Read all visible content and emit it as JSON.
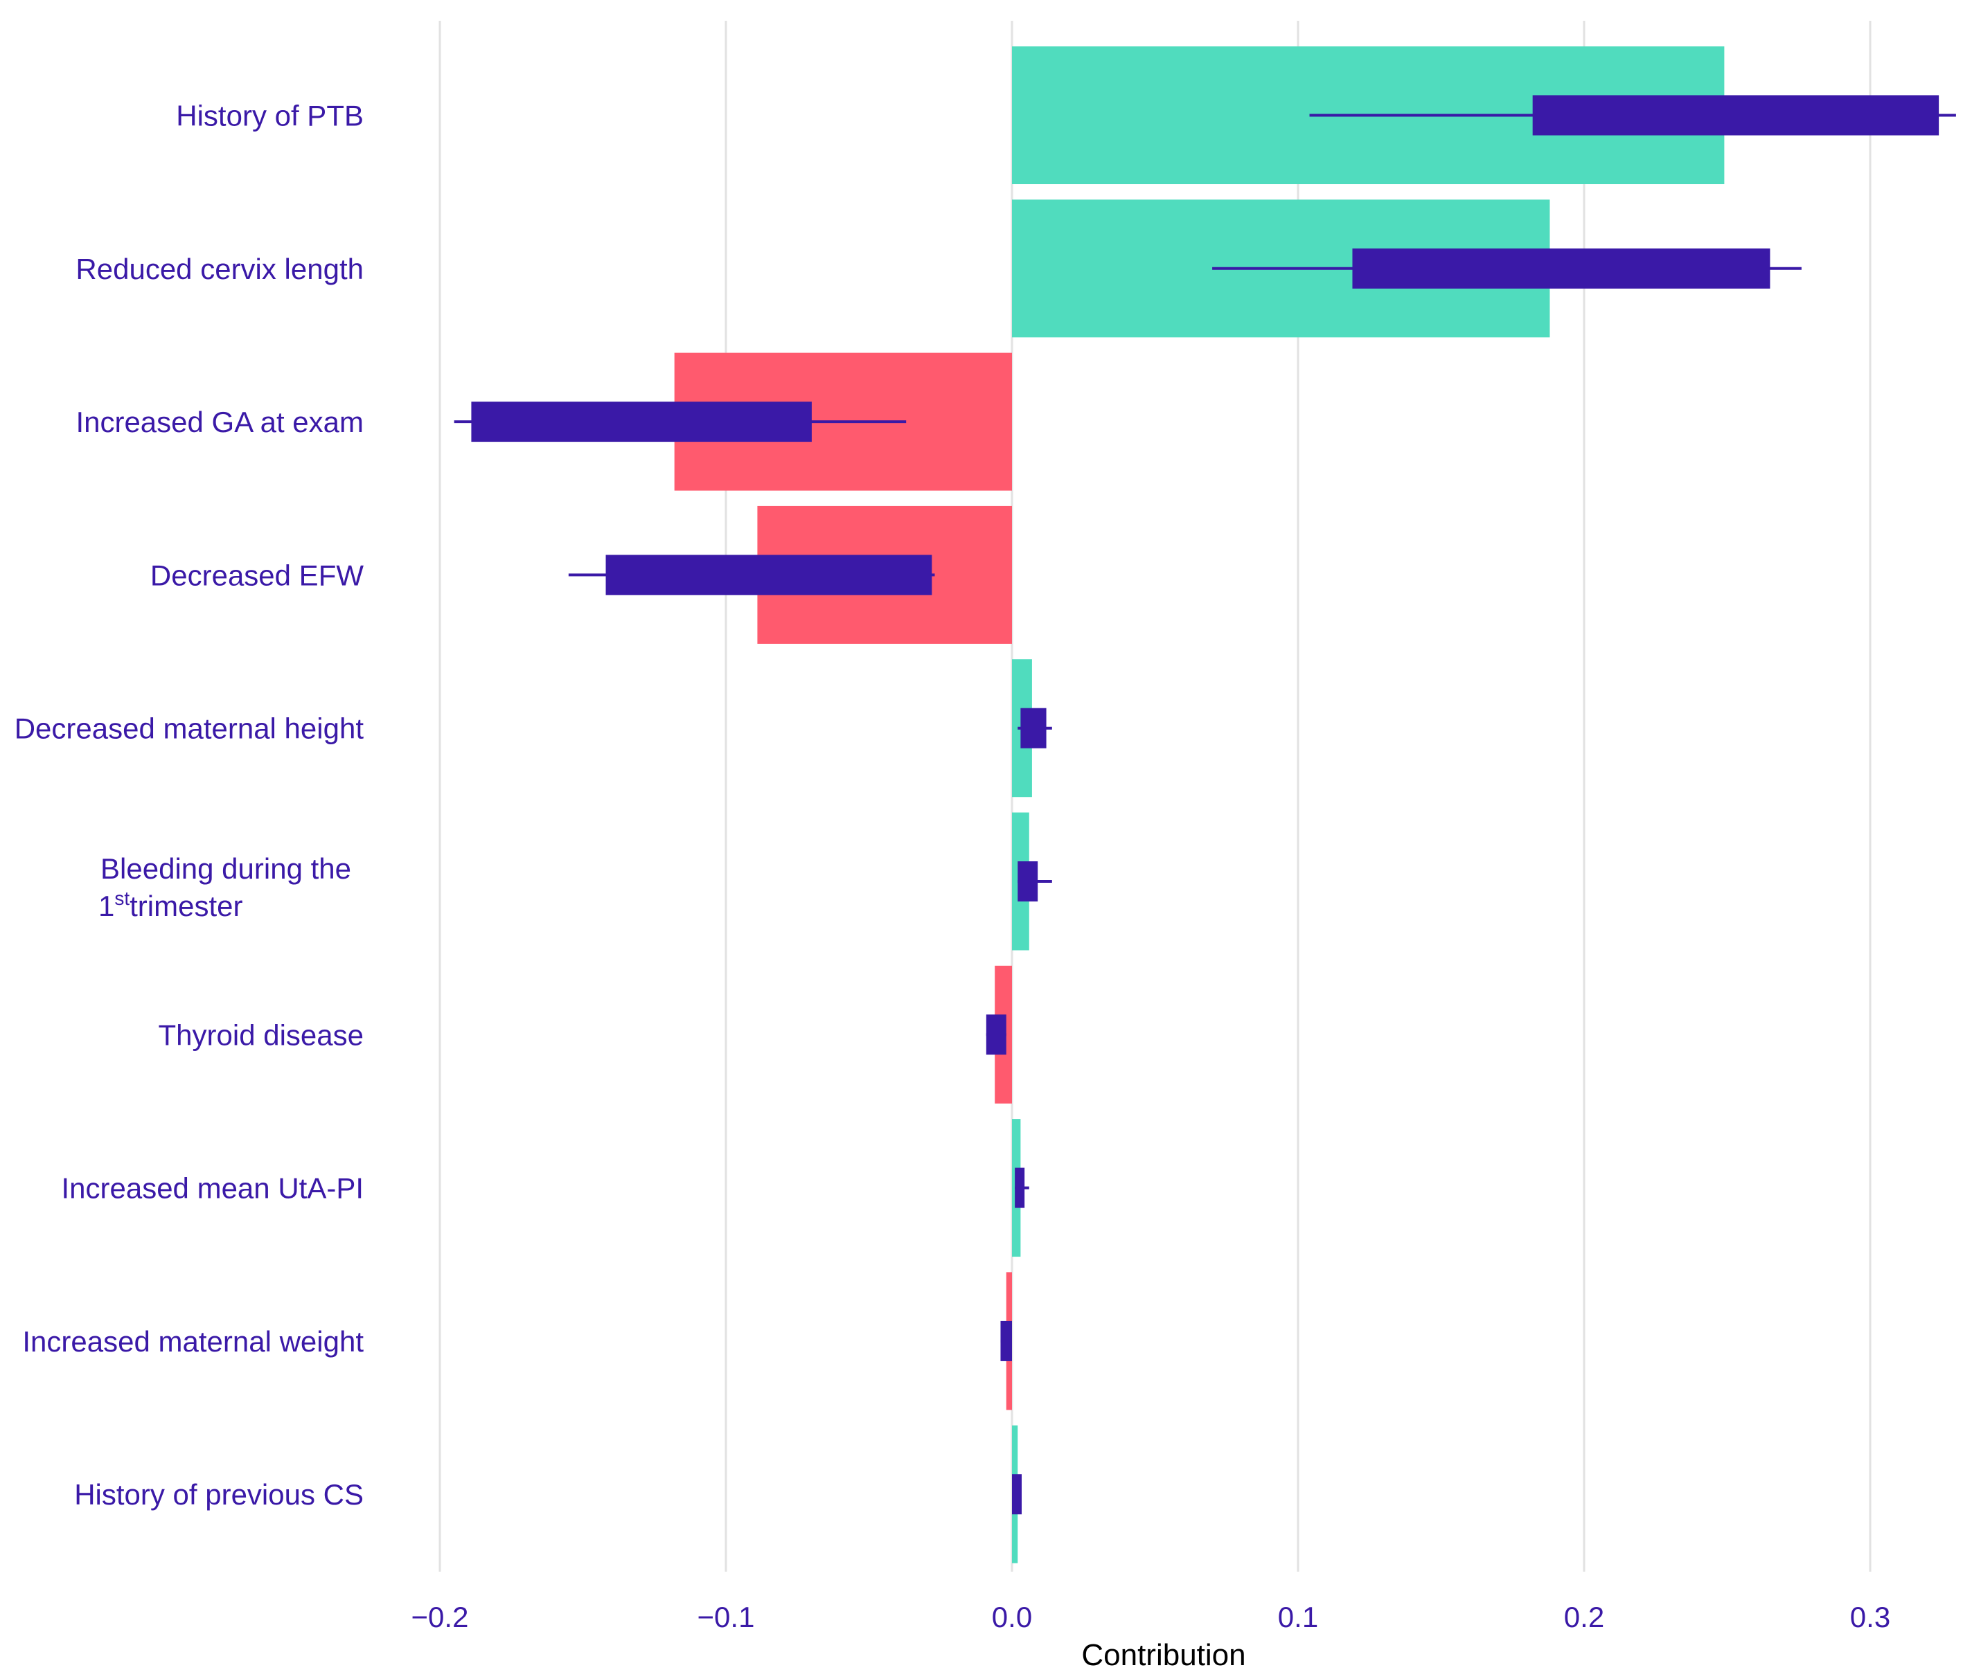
{
  "colors": {
    "positive": "#50dcbe",
    "negative": "#ff5a6e",
    "box": "#3a19a7",
    "text": "#3a19a7",
    "grid": "#e2e2e2"
  },
  "chart_data": {
    "type": "bar",
    "orientation": "horizontal",
    "title": "",
    "xlabel": "Contribution",
    "ylabel": "",
    "xlim": [
      -0.2,
      0.33
    ],
    "grid": true,
    "xticks": [
      -0.2,
      -0.1,
      0.0,
      0.1,
      0.2,
      0.3
    ],
    "xtick_labels": [
      "−0.2",
      "−0.1",
      "0.0",
      "0.1",
      "0.2",
      "0.3"
    ],
    "categories": [
      {
        "lines": [
          "History of PTB"
        ]
      },
      {
        "lines": [
          "Reduced cervix length"
        ]
      },
      {
        "lines": [
          "Increased GA at exam"
        ]
      },
      {
        "lines": [
          "Decreased EFW"
        ]
      },
      {
        "lines": [
          "Decreased maternal height"
        ]
      },
      {
        "lines": [
          "Bleeding during the",
          "1",
          "st",
          "trimester"
        ]
      },
      {
        "lines": [
          "Thyroid disease"
        ]
      },
      {
        "lines": [
          "Increased mean UtA-PI"
        ]
      },
      {
        "lines": [
          "Increased maternal weight"
        ]
      },
      {
        "lines": [
          "History of previous CS"
        ]
      }
    ],
    "series": [
      {
        "name": "contribution",
        "values": [
          0.249,
          0.188,
          -0.118,
          -0.089,
          0.007,
          0.006,
          -0.006,
          0.003,
          -0.002,
          0.002
        ]
      },
      {
        "name": "distribution",
        "box_low": [
          0.182,
          0.119,
          -0.189,
          -0.142,
          0.003,
          0.002,
          -0.009,
          0.001,
          -0.004,
          0.0
        ],
        "box_high": [
          0.324,
          0.265,
          -0.07,
          -0.028,
          0.012,
          0.009,
          -0.002,
          0.004,
          0.0,
          0.003
        ],
        "whisker_low": [
          0.104,
          0.07,
          -0.195,
          -0.155,
          0.002,
          0.002,
          -0.009,
          0.001,
          -0.004,
          0.0
        ],
        "whisker_high": [
          0.33,
          0.276,
          -0.037,
          -0.027,
          0.014,
          0.014,
          -0.002,
          0.006,
          0.0,
          0.003
        ]
      }
    ]
  }
}
